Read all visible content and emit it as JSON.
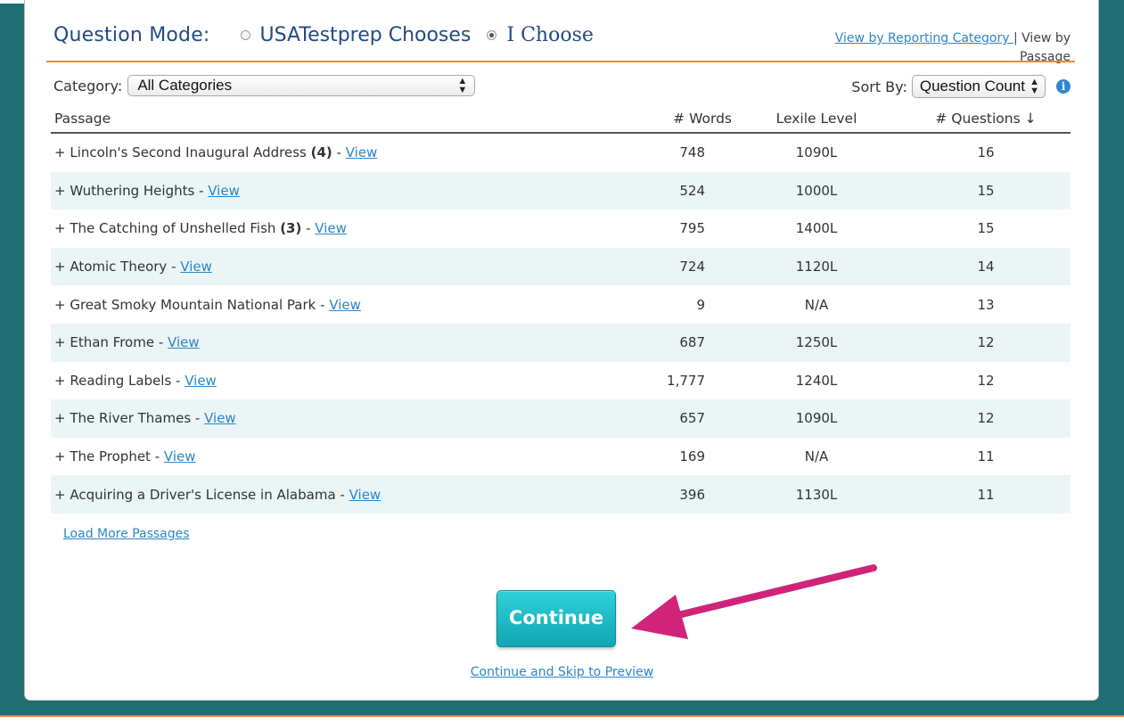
{
  "mode": {
    "label": "Question Mode:",
    "options": [
      {
        "label": "USATestprep Chooses",
        "selected": false
      },
      {
        "label": "I Choose",
        "selected": true
      }
    ]
  },
  "view_links": {
    "by_category": "View by Reporting Category ",
    "separator": "| View by Passage"
  },
  "filters": {
    "category_label": "Category:",
    "category_value": "All Categories",
    "sort_label": "Sort By:",
    "sort_value": "Question Count"
  },
  "table": {
    "headers": [
      "Passage",
      "# Words",
      "Lexile Level",
      "# Questions ↓"
    ],
    "rows": [
      {
        "prefix": "+ Lincoln's Second Inaugural Address ",
        "count": "(4)",
        "link": "View",
        "words": "748",
        "lexile": "1090L",
        "questions": "16"
      },
      {
        "prefix": "+ Wuthering Heights",
        "count": "",
        "link": "View",
        "words": "524",
        "lexile": "1000L",
        "questions": "15"
      },
      {
        "prefix": "+ The Catching of Unshelled Fish ",
        "count": "(3)",
        "link": "View",
        "words": "795",
        "lexile": "1400L",
        "questions": "15"
      },
      {
        "prefix": "+ Atomic Theory",
        "count": "",
        "link": "View",
        "words": "724",
        "lexile": "1120L",
        "questions": "14"
      },
      {
        "prefix": "+ Great Smoky Mountain National Park",
        "count": "",
        "link": "View",
        "words": "9",
        "lexile": "N/A",
        "questions": "13"
      },
      {
        "prefix": "+ Ethan Frome",
        "count": "",
        "link": "View",
        "words": "687",
        "lexile": "1250L",
        "questions": "12"
      },
      {
        "prefix": "+ Reading Labels",
        "count": "",
        "link": "View",
        "words": "1,777",
        "lexile": "1240L",
        "questions": "12"
      },
      {
        "prefix": "+ The River Thames",
        "count": "",
        "link": "View",
        "words": "657",
        "lexile": "1090L",
        "questions": "12"
      },
      {
        "prefix": "+ The Prophet",
        "count": "",
        "link": "View",
        "words": "169",
        "lexile": "N/A",
        "questions": "11"
      },
      {
        "prefix": "+ Acquiring a Driver's License in Alabama",
        "count": "",
        "link": "View",
        "words": "396",
        "lexile": "1130L",
        "questions": "11"
      }
    ]
  },
  "actions": {
    "load_more": "Load More Passages",
    "continue": "Continue",
    "skip": "Continue and Skip to Preview"
  },
  "colors": {
    "heading": "#234a85",
    "link": "#2a86c8",
    "rule": "#ec8a3d",
    "button": "#13a5b3",
    "arrow": "#d0247a"
  }
}
